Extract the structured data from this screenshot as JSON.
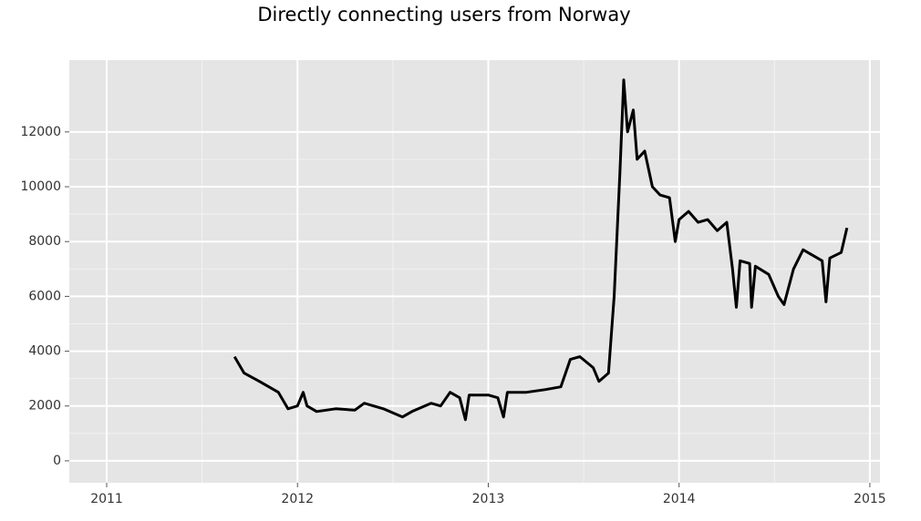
{
  "chart_data": {
    "type": "line",
    "title": "Directly connecting users from Norway",
    "x": [
      2011.67,
      2011.72,
      2011.8,
      2011.9,
      2011.95,
      2012.0,
      2012.03,
      2012.05,
      2012.1,
      2012.2,
      2012.3,
      2012.35,
      2012.45,
      2012.55,
      2012.6,
      2012.7,
      2012.75,
      2012.8,
      2012.85,
      2012.88,
      2012.9,
      2013.0,
      2013.05,
      2013.08,
      2013.1,
      2013.2,
      2013.3,
      2013.38,
      2013.43,
      2013.48,
      2013.55,
      2013.58,
      2013.63,
      2013.66,
      2013.69,
      2013.71,
      2013.73,
      2013.76,
      2013.78,
      2013.82,
      2013.86,
      2013.9,
      2013.95,
      2013.98,
      2014.0,
      2014.05,
      2014.1,
      2014.15,
      2014.2,
      2014.25,
      2014.28,
      2014.3,
      2014.32,
      2014.37,
      2014.38,
      2014.4,
      2014.47,
      2014.52,
      2014.55,
      2014.6,
      2014.65,
      2014.75,
      2014.77,
      2014.79,
      2014.85,
      2014.88
    ],
    "values": [
      3800,
      3200,
      2900,
      2500,
      1900,
      2000,
      2500,
      2000,
      1800,
      1900,
      1850,
      2100,
      1900,
      1600,
      1800,
      2100,
      2000,
      2500,
      2300,
      1500,
      2400,
      2400,
      2300,
      1600,
      2500,
      2500,
      2600,
      2700,
      3700,
      3800,
      3400,
      2900,
      3200,
      6000,
      10500,
      13900,
      12000,
      12800,
      11000,
      11300,
      10000,
      9700,
      9600,
      8000,
      8800,
      9100,
      8700,
      8800,
      8400,
      8700,
      7000,
      5600,
      7300,
      7200,
      5600,
      7100,
      6800,
      6000,
      5700,
      7000,
      7700,
      7300,
      5800,
      7400,
      7600,
      8500
    ],
    "color": "#000000",
    "xlim": [
      2010.804,
      2015.053
    ],
    "xticks": [
      2011,
      2012,
      2013,
      2014,
      2015
    ],
    "ylim": [
      -800,
      14620
    ],
    "yticks": [
      0,
      2000,
      4000,
      6000,
      8000,
      10000,
      12000
    ],
    "grid": true
  }
}
